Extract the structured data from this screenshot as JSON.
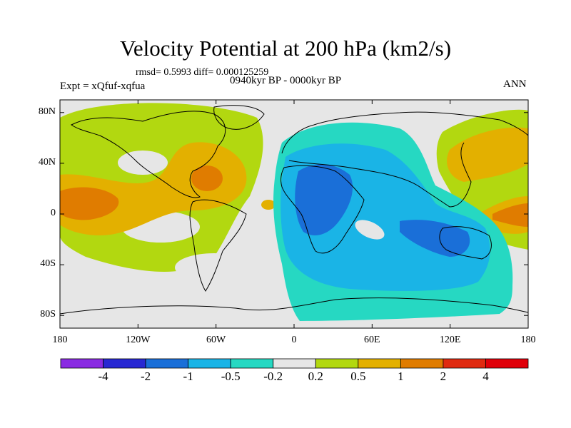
{
  "header": {
    "title": "Velocity Potential at 200 hPa (km2/s)",
    "stats": "rmsd= 0.5993 diff= 0.000125259",
    "period": "0940kyr BP - 0000kyr BP",
    "experiment": "Expt = xQfuf-xqfua",
    "season": "ANN"
  },
  "axes": {
    "y_ticks": [
      {
        "label": "80N",
        "lat": 80
      },
      {
        "label": "40N",
        "lat": 40
      },
      {
        "label": "0",
        "lat": 0
      },
      {
        "label": "40S",
        "lat": -40
      },
      {
        "label": "80S",
        "lat": -80
      }
    ],
    "x_ticks": [
      {
        "label": "180",
        "lon": -180
      },
      {
        "label": "120W",
        "lon": -120
      },
      {
        "label": "60W",
        "lon": -60
      },
      {
        "label": "0",
        "lon": 0
      },
      {
        "label": "60E",
        "lon": 60
      },
      {
        "label": "120E",
        "lon": 120
      },
      {
        "label": "180",
        "lon": 180
      }
    ]
  },
  "colorbar": {
    "labels": [
      "-4",
      "-2",
      "-1",
      "-0.5",
      "-0.2",
      "0.2",
      "0.5",
      "1",
      "2",
      "4"
    ],
    "colors": [
      "#8a2be2",
      "#2828d2",
      "#1a6fd8",
      "#1ab4e6",
      "#26d8c2",
      "#e6e6e6",
      "#b2d810",
      "#e3b000",
      "#e07c00",
      "#e02a10",
      "#e0000a"
    ]
  },
  "field_colors": {
    "neutral": "#e6e6e6",
    "pos_weak": "#b2d810",
    "pos_mid": "#e3b000",
    "pos_strong": "#e07c00",
    "neg_weak": "#26d8c2",
    "neg_mid": "#1ab4e6",
    "neg_strong": "#1a6fd8",
    "coast": "#000000"
  }
}
